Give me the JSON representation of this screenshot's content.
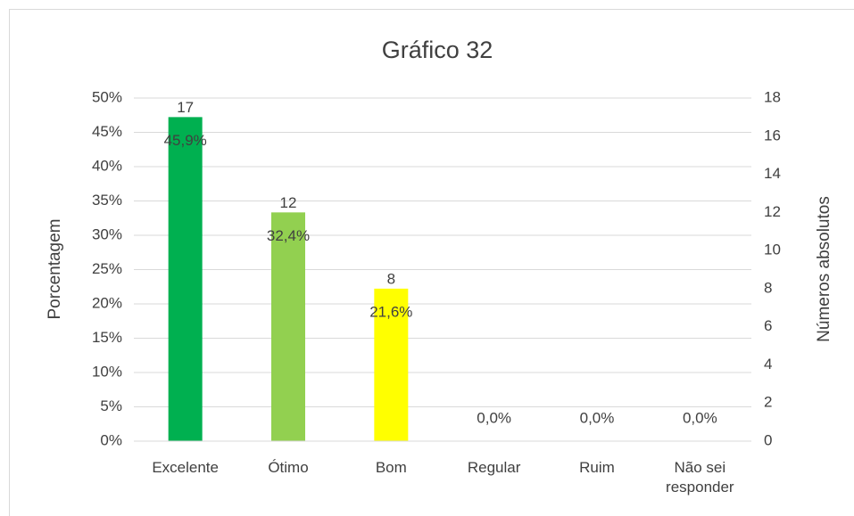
{
  "chart_data": {
    "type": "bar",
    "title": "Gráfico 32",
    "y_label": "Porcentagem",
    "y2_label": "Números absolutos",
    "categories": [
      "Excelente",
      "Ótimo",
      "Bom",
      "Regular",
      "Ruim",
      "Não sei responder"
    ],
    "series": [
      {
        "values": [
          45.9,
          32.4,
          21.6,
          0,
          0,
          0
        ],
        "value_labels": [
          "45,9%",
          "32,4%",
          "21,6%",
          "0,0%",
          "0,0%",
          "0,0%"
        ]
      },
      {
        "axis": "y2",
        "values": [
          17,
          12,
          8,
          0,
          0,
          0
        ],
        "colors": [
          "#00b050",
          "#92d050",
          "#ffff00",
          "#00b050",
          "#92d050",
          "#ffff00"
        ]
      }
    ],
    "ylim": [
      0,
      50
    ],
    "yticks": [
      {
        "value": 0,
        "label": "0%"
      },
      {
        "value": 5,
        "label": "5%"
      },
      {
        "value": 10,
        "label": "10%"
      },
      {
        "value": 15,
        "label": "15%"
      },
      {
        "value": 20,
        "label": "20%"
      },
      {
        "value": 25,
        "label": "25%"
      },
      {
        "value": 30,
        "label": "30%"
      },
      {
        "value": 35,
        "label": "35%"
      },
      {
        "value": 40,
        "label": "40%"
      },
      {
        "value": 45,
        "label": "45%"
      },
      {
        "value": 50,
        "label": "50%"
      }
    ],
    "y2lim": [
      0,
      18
    ],
    "y2ticks": [
      0,
      2,
      4,
      6,
      8,
      10,
      12,
      14,
      16,
      18
    ],
    "grid": true
  }
}
